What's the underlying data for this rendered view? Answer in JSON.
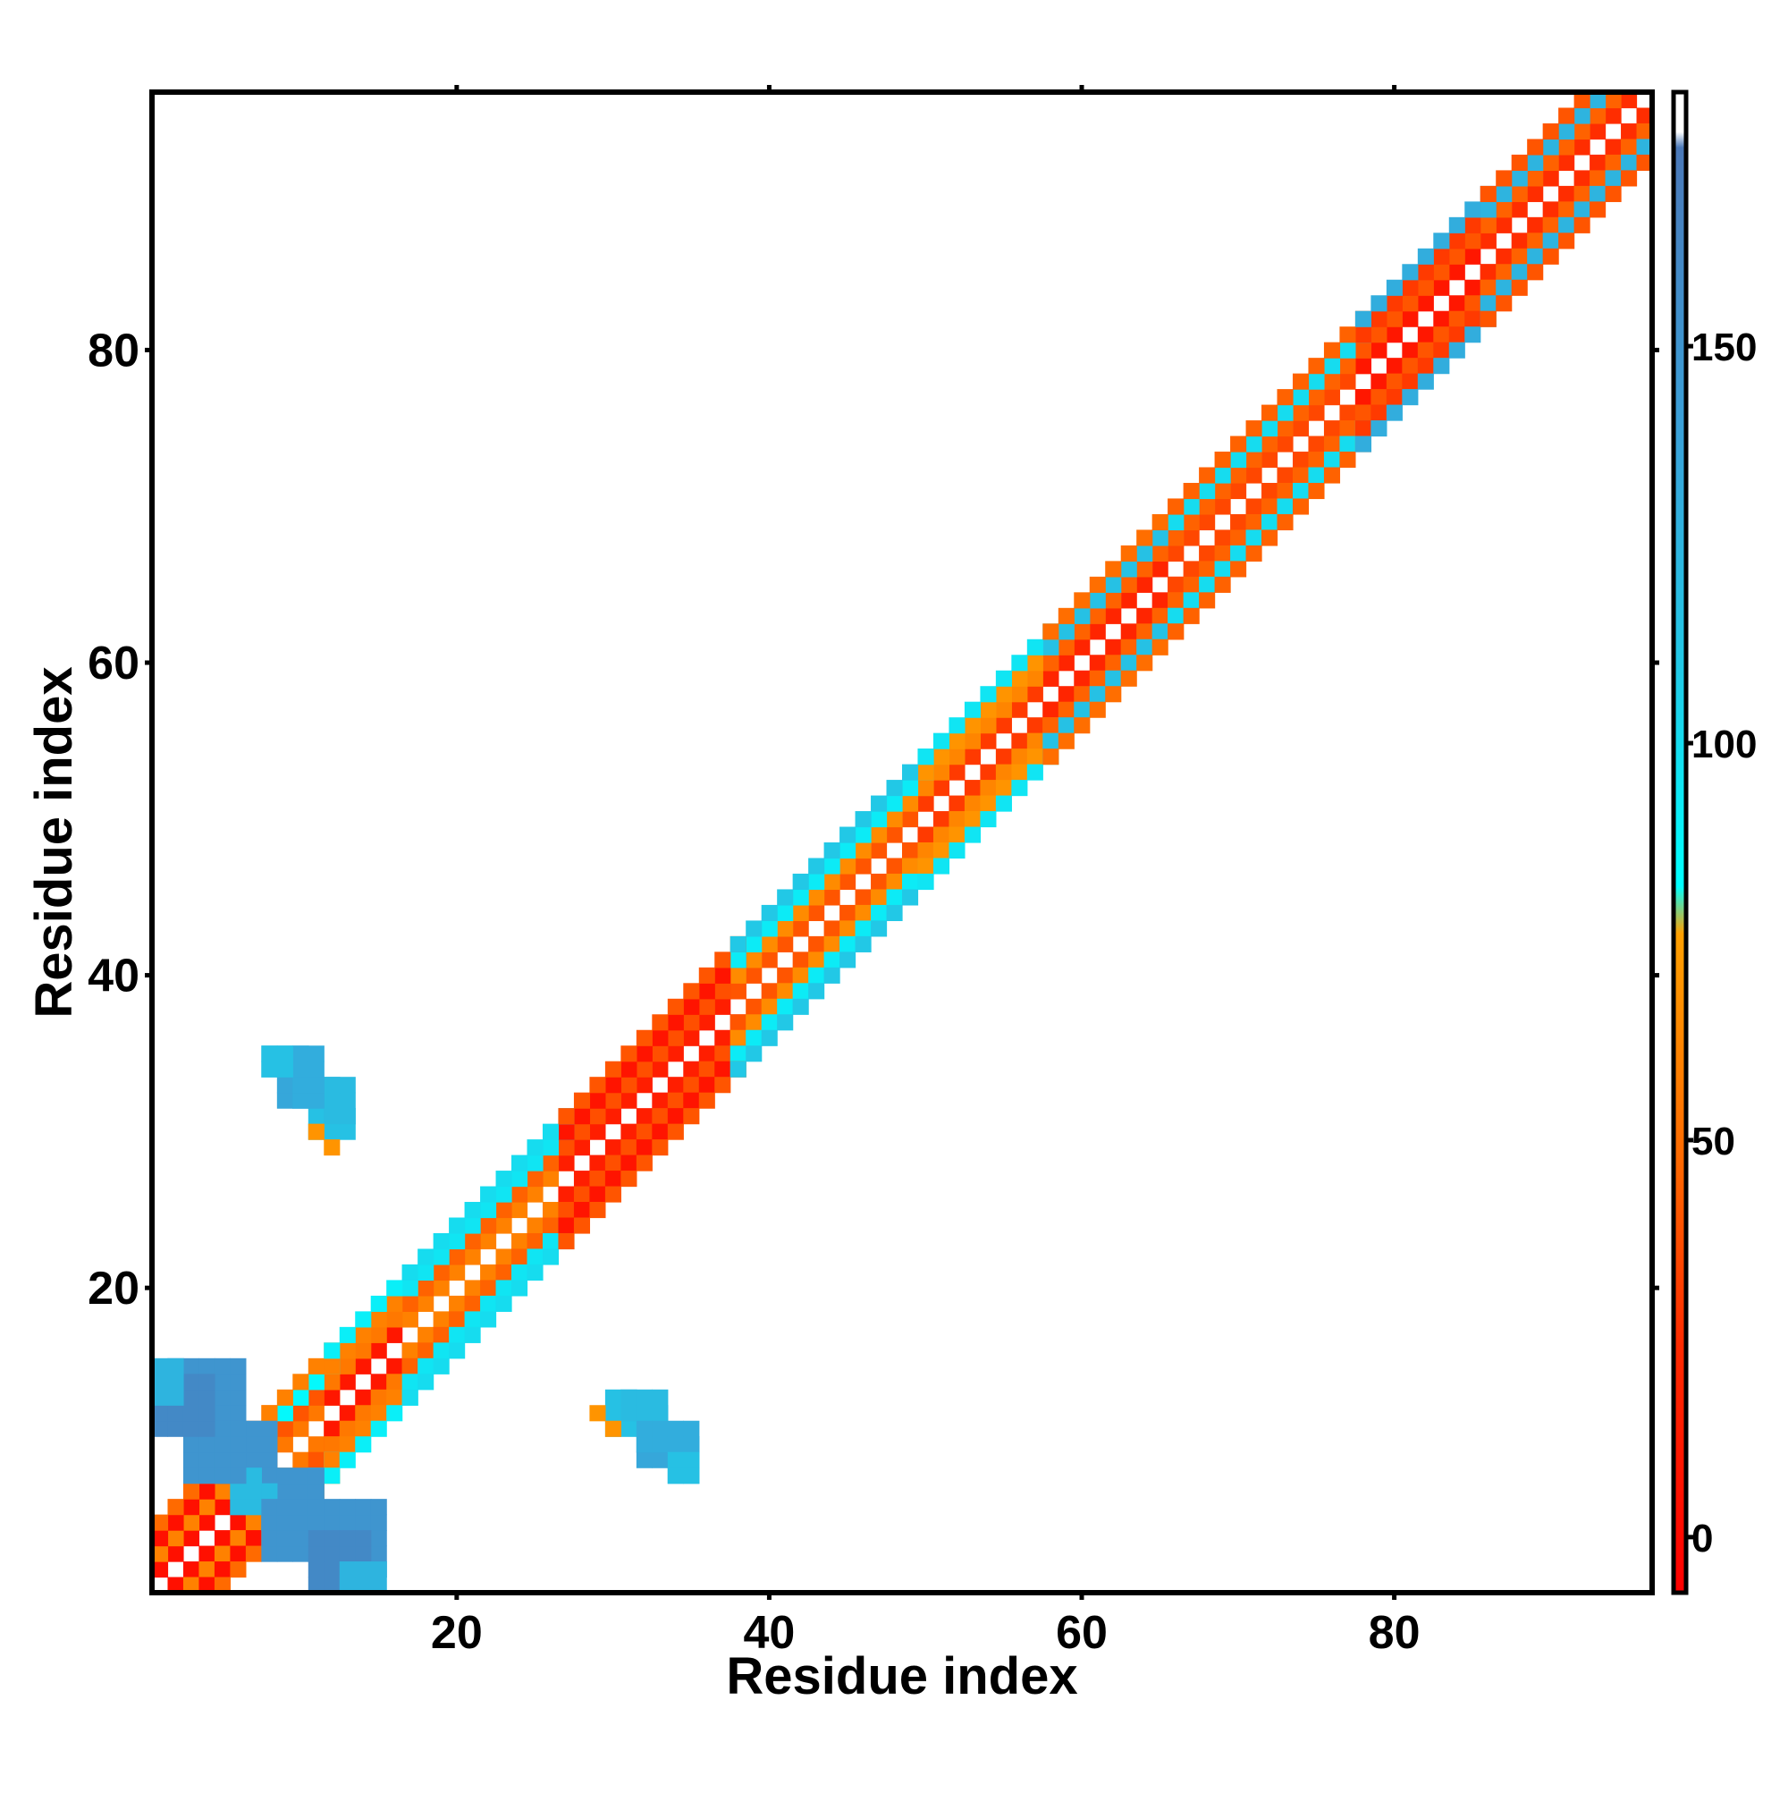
{
  "chart_data": {
    "type": "heatmap",
    "title": "",
    "xlabel": "Residue index",
    "ylabel": "Residue index",
    "xlim": [
      0.5,
      96.5
    ],
    "ylim": [
      0.5,
      96.5
    ],
    "x_ticks": [
      20,
      40,
      60,
      80
    ],
    "y_ticks": [
      20,
      40,
      60,
      80
    ],
    "grid": false,
    "colorbar": {
      "placement": "right",
      "range": [
        -7,
        182
      ],
      "ticks": [
        0,
        50,
        100,
        150
      ],
      "stops": [
        {
          "value": -7,
          "color": "#ff0000"
        },
        {
          "value": 24,
          "color": "#ff2a00"
        },
        {
          "value": 48,
          "color": "#ff6a00"
        },
        {
          "value": 76,
          "color": "#ffa000"
        },
        {
          "value": 82,
          "color": "#00ffff"
        },
        {
          "value": 110,
          "color": "#22c8e6"
        },
        {
          "value": 140,
          "color": "#3aa0d8"
        },
        {
          "value": 175,
          "color": "#4a78b8"
        },
        {
          "value": 177,
          "color": "#ffffff"
        },
        {
          "value": 182,
          "color": "#ffffff"
        }
      ]
    },
    "diagonal_bands": [
      {
        "offsets": [
          -1,
          1
        ],
        "segments": [
          {
            "from": 1,
            "to": 8,
            "value": 5
          },
          {
            "from": 8,
            "to": 12,
            "value": 55
          },
          {
            "from": 12,
            "to": 17,
            "value": 10
          },
          {
            "from": 17,
            "to": 27,
            "value": 60
          },
          {
            "from": 27,
            "to": 38,
            "value": 15
          },
          {
            "from": 38,
            "to": 50,
            "value": 40
          },
          {
            "from": 50,
            "to": 58,
            "value": 30
          },
          {
            "from": 58,
            "to": 66,
            "value": 20
          },
          {
            "from": 66,
            "to": 78,
            "value": 35
          },
          {
            "from": 78,
            "to": 86,
            "value": 10
          },
          {
            "from": 86,
            "to": 96,
            "value": 25
          }
        ]
      },
      {
        "offsets": [
          -2,
          2
        ],
        "segments": [
          {
            "from": 1,
            "to": 8,
            "value": 60
          },
          {
            "from": 8,
            "to": 12,
            "value": 40
          },
          {
            "from": 12,
            "to": 17,
            "value": 55
          },
          {
            "from": 17,
            "to": 27,
            "value": 45
          },
          {
            "from": 27,
            "to": 38,
            "value": 38
          },
          {
            "from": 38,
            "to": 50,
            "value": 65
          },
          {
            "from": 50,
            "to": 58,
            "value": 62
          },
          {
            "from": 58,
            "to": 66,
            "value": 45
          },
          {
            "from": 66,
            "to": 78,
            "value": 45
          },
          {
            "from": 78,
            "to": 86,
            "value": 40
          },
          {
            "from": 86,
            "to": 96,
            "value": 45
          }
        ]
      },
      {
        "offsets": [
          -3,
          3
        ],
        "segments": [
          {
            "from": 1,
            "to": 8,
            "value": 5
          },
          {
            "from": 8,
            "to": 12,
            "value": 85
          },
          {
            "from": 12,
            "to": 17,
            "value": 60
          },
          {
            "from": 17,
            "to": 27,
            "value": 95
          },
          {
            "from": 27,
            "to": 38,
            "value": 8
          },
          {
            "from": 38,
            "to": 50,
            "value": 92
          },
          {
            "from": 50,
            "to": 58,
            "value": 70
          },
          {
            "from": 58,
            "to": 66,
            "value": 115
          },
          {
            "from": 66,
            "to": 78,
            "value": 100
          },
          {
            "from": 78,
            "to": 86,
            "value": 30
          },
          {
            "from": 86,
            "to": 96,
            "value": 125
          }
        ]
      },
      {
        "offsets": [
          -4,
          4
        ],
        "segments": [
          {
            "from": 1,
            "to": 8,
            "value": 48
          },
          {
            "from": 8,
            "to": 12,
            "value": 60
          },
          {
            "from": 12,
            "to": 17,
            "value": 90
          },
          {
            "from": 17,
            "to": 27,
            "value": 100
          },
          {
            "from": 27,
            "to": 38,
            "value": 40
          },
          {
            "from": 38,
            "to": 50,
            "value": 110
          },
          {
            "from": 50,
            "to": 58,
            "value": 95
          },
          {
            "from": 58,
            "to": 66,
            "value": 50
          },
          {
            "from": 66,
            "to": 78,
            "value": 45
          },
          {
            "from": 78,
            "to": 86,
            "value": 130
          },
          {
            "from": 86,
            "to": 96,
            "value": 40
          }
        ]
      }
    ],
    "contact_blocks": [
      {
        "x": [
          2,
          6
        ],
        "y": [
          12,
          15
        ],
        "value": 150
      },
      {
        "x": [
          5,
          8
        ],
        "y": [
          8,
          11
        ],
        "value": 150
      },
      {
        "x": [
          6,
          8
        ],
        "y": [
          6,
          7
        ],
        "value": 120
      },
      {
        "x": [
          8,
          11
        ],
        "y": [
          3,
          6
        ],
        "value": 150
      },
      {
        "x": [
          11,
          14
        ],
        "y": [
          1,
          4
        ],
        "value": 160
      },
      {
        "x": [
          13,
          15
        ],
        "y": [
          1,
          2
        ],
        "value": 125
      },
      {
        "x": [
          8,
          10
        ],
        "y": [
          34,
          35
        ],
        "value": 120
      },
      {
        "x": [
          9,
          12
        ],
        "y": [
          32,
          33
        ],
        "value": 135
      },
      {
        "x": [
          11,
          13
        ],
        "y": [
          30,
          31
        ],
        "value": 115
      },
      {
        "x": [
          12,
          12
        ],
        "y": [
          29,
          29
        ],
        "value": 70
      },
      {
        "x": [
          31,
          33
        ],
        "y": [
          12,
          13
        ],
        "value": 120
      },
      {
        "x": [
          30,
          30
        ],
        "y": [
          11,
          11
        ],
        "value": 70
      },
      {
        "x": [
          32,
          35
        ],
        "y": [
          10,
          11
        ],
        "value": 130
      },
      {
        "x": [
          34,
          35
        ],
        "y": [
          8,
          9
        ],
        "value": 115
      }
    ]
  }
}
